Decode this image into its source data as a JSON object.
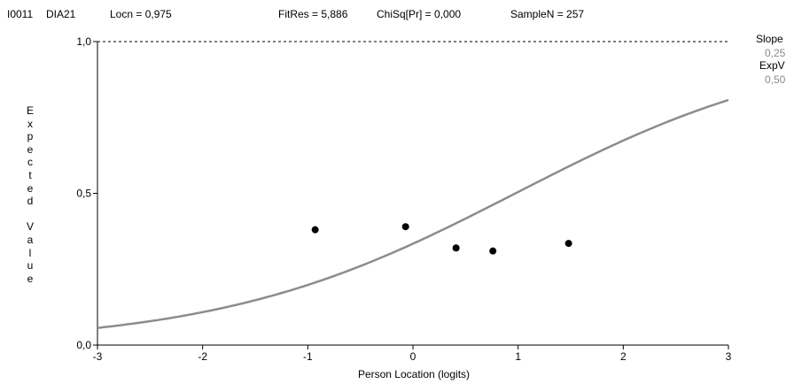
{
  "header": {
    "item_id": "I0011",
    "item_label": "DIA21",
    "locn": "Locn = 0,975",
    "fitres": "FitRes = 5,886",
    "chisq": "ChiSq[Pr] = 0,000",
    "samplen": "SampleN = 257"
  },
  "side_panel": {
    "slope_label": "Slope",
    "slope_value": "0,25",
    "expv_label": "ExpV",
    "expv_value": "0,50"
  },
  "chart_data": {
    "type": "line",
    "xlabel": "Person Location (logits)",
    "ylabel": "Expected Value",
    "xlim": [
      -3,
      3
    ],
    "ylim": [
      0,
      1
    ],
    "x_ticks": [
      -3,
      -2,
      -1,
      0,
      1,
      2,
      3
    ],
    "x_tick_labels": [
      "-3",
      "-2",
      "-1",
      "0",
      "1",
      "2",
      "3"
    ],
    "y_ticks": [
      0,
      0.5,
      1
    ],
    "y_tick_labels": [
      "0,0",
      "0,5",
      "1,0"
    ],
    "reference_line_y": 1.0,
    "curve": {
      "location": 0.975,
      "slope_per_logit": 0.708
    },
    "series": [
      {
        "type": "scatter",
        "points": [
          {
            "x": -0.93,
            "y": 0.38
          },
          {
            "x": -0.07,
            "y": 0.39
          },
          {
            "x": 0.41,
            "y": 0.32
          },
          {
            "x": 0.76,
            "y": 0.31
          },
          {
            "x": 1.48,
            "y": 0.335
          }
        ]
      }
    ],
    "colors": {
      "curve": "#8c8c8c",
      "points": "#000000"
    },
    "grid": false
  }
}
